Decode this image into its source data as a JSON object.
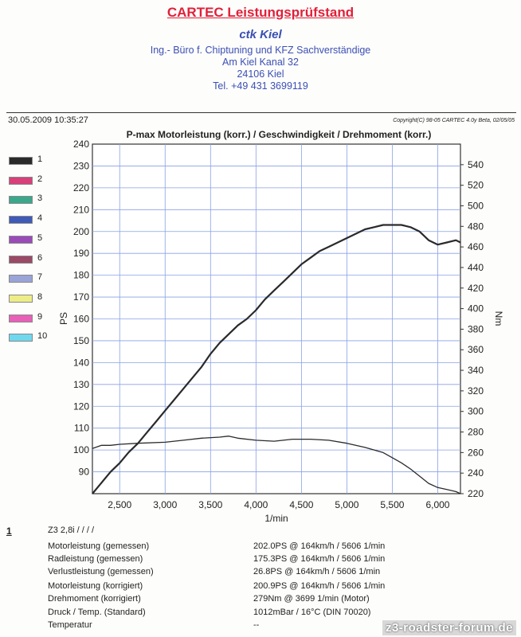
{
  "header": {
    "company": "CARTEC Leistungsprüfstand",
    "ctk": "ctk Kiel",
    "address_lines": [
      "Ing.- Büro f. Chiptuning und KFZ Sachverständige",
      "Am Kiel Kanal 32",
      "24106 Kiel",
      "Tel. +49 431 3699119"
    ],
    "datetime": "30.05.2009 10:35:27",
    "copyright": "Copyright(C) 98-05 CARTEC 4.0y Beta, 02/05/05"
  },
  "chart_data": {
    "type": "line",
    "title": "P-max Motorleistung (korr.) / Geschwindigkeit / Drehmoment (korr.)",
    "xlabel": "1/min",
    "ylabel_left": "PS",
    "ylabel_right": "Nm",
    "xlim": [
      2200,
      6250
    ],
    "ylim_left": [
      80,
      240
    ],
    "ylim_right": [
      220,
      560
    ],
    "grid": true,
    "x_ticks": [
      2500,
      3000,
      3500,
      4000,
      4500,
      5000,
      5500,
      6000
    ],
    "x_tick_labels": [
      "2,500",
      "3,000",
      "3,500",
      "4,000",
      "4,500",
      "5,000",
      "5,500",
      "6,000"
    ],
    "y_left_ticks": [
      90,
      100,
      110,
      120,
      130,
      140,
      150,
      160,
      170,
      180,
      190,
      200,
      210,
      220,
      230,
      240
    ],
    "y_right_ticks": [
      220,
      240,
      260,
      280,
      300,
      320,
      340,
      360,
      380,
      400,
      420,
      440,
      460,
      480,
      500,
      520,
      540
    ],
    "legend": [
      "1",
      "2",
      "3",
      "4",
      "5",
      "6",
      "7",
      "8",
      "9",
      "10"
    ],
    "legend_colors": [
      "#2a2a2a",
      "#d8407a",
      "#3aa88a",
      "#3f5ab8",
      "#9b4bb8",
      "#9a4a66",
      "#9aa4d8",
      "#eded88",
      "#e860b8",
      "#6fd8ef"
    ],
    "series": [
      {
        "axis": "left",
        "color": "#2a2a2a",
        "points": [
          [
            2200,
            80
          ],
          [
            2300,
            85
          ],
          [
            2400,
            90
          ],
          [
            2500,
            94
          ],
          [
            2600,
            99
          ],
          [
            2700,
            103
          ],
          [
            2800,
            108
          ],
          [
            2900,
            113
          ],
          [
            3000,
            118
          ],
          [
            3100,
            123
          ],
          [
            3200,
            128
          ],
          [
            3300,
            133
          ],
          [
            3400,
            138
          ],
          [
            3500,
            144
          ],
          [
            3600,
            149
          ],
          [
            3700,
            153
          ],
          [
            3800,
            157
          ],
          [
            3900,
            160
          ],
          [
            4000,
            164
          ],
          [
            4100,
            169
          ],
          [
            4200,
            173
          ],
          [
            4300,
            177
          ],
          [
            4400,
            181
          ],
          [
            4500,
            185
          ],
          [
            4600,
            188
          ],
          [
            4700,
            191
          ],
          [
            4800,
            193
          ],
          [
            4900,
            195
          ],
          [
            5000,
            197
          ],
          [
            5100,
            199
          ],
          [
            5200,
            201
          ],
          [
            5300,
            202
          ],
          [
            5400,
            203
          ],
          [
            5500,
            203
          ],
          [
            5600,
            203
          ],
          [
            5700,
            202
          ],
          [
            5800,
            200
          ],
          [
            5900,
            196
          ],
          [
            6000,
            194
          ],
          [
            6100,
            195
          ],
          [
            6200,
            196
          ],
          [
            6250,
            195
          ]
        ]
      },
      {
        "axis": "right",
        "color": "#2a2a2a",
        "points": [
          [
            2200,
            264
          ],
          [
            2300,
            267
          ],
          [
            2400,
            267
          ],
          [
            2500,
            268
          ],
          [
            2700,
            269
          ],
          [
            3000,
            270
          ],
          [
            3200,
            272
          ],
          [
            3400,
            274
          ],
          [
            3600,
            275
          ],
          [
            3700,
            276
          ],
          [
            3800,
            274
          ],
          [
            4000,
            272
          ],
          [
            4200,
            271
          ],
          [
            4400,
            273
          ],
          [
            4600,
            273
          ],
          [
            4800,
            272
          ],
          [
            5000,
            269
          ],
          [
            5200,
            265
          ],
          [
            5400,
            260
          ],
          [
            5500,
            255
          ],
          [
            5600,
            250
          ],
          [
            5700,
            244
          ],
          [
            5800,
            237
          ],
          [
            5900,
            230
          ],
          [
            6000,
            226
          ],
          [
            6100,
            224
          ],
          [
            6200,
            222
          ],
          [
            6250,
            220
          ]
        ]
      }
    ]
  },
  "results": {
    "index": "1",
    "model": "Z3 2,8i / / / /",
    "rows": [
      {
        "label": "Motorleistung (gemessen)",
        "value": "202.0PS @ 164km/h / 5606 1/min"
      },
      {
        "label": "Radleistung (gemessen)",
        "value": "175.3PS @ 164km/h / 5606 1/min"
      },
      {
        "label": "Verlustleistung (gemessen)",
        "value": "26.8PS @ 164km/h / 5606 1/min"
      },
      {
        "label": "Motorleistung (korrigiert)",
        "value": "200.9PS @ 164km/h / 5606 1/min"
      },
      {
        "label": "Drehmoment (korrigiert)",
        "value": "279Nm @ 3699 1/min (Motor)"
      },
      {
        "label": "Druck / Temp. (Standard)",
        "value": "1012mBar / 16°C  (DIN 70020)"
      },
      {
        "label": "Temperatur",
        "value": "--"
      }
    ]
  },
  "watermark": "z3-roadster-forum.de"
}
